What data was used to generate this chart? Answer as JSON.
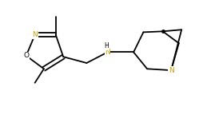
{
  "bg_color": "#ffffff",
  "line_color": "#000000",
  "gold": "#c8a000",
  "figsize": [
    2.69,
    1.58
  ],
  "dpi": 100,
  "xlim": [
    0,
    10
  ],
  "ylim": [
    0,
    6
  ],
  "lw": 1.3,
  "double_sep": 0.1,
  "font_size_atom": 6.5,
  "font_size_H": 5.5
}
